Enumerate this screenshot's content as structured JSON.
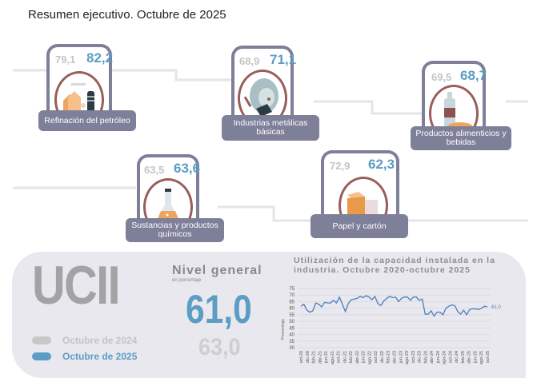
{
  "header": {
    "subtitle": "Resumen ejecutivo. Octubre de 2025"
  },
  "colors": {
    "frame": "#7e7f98",
    "blue": "#5b9dc4",
    "gray": "#c4c4c4",
    "ring": "#9a5e59",
    "panel": "#e8e8ee"
  },
  "industries": [
    {
      "name": "Refinación del petróleo",
      "v2024": "79,1",
      "v2025": "82,2",
      "icon": "refinery-icon"
    },
    {
      "name": "Industrias metálicas básicas",
      "v2024": "68,9",
      "v2025": "71,1",
      "icon": "welding-mask-icon"
    },
    {
      "name": "Productos alimenticios y bebidas",
      "v2024": "69,5",
      "v2025": "68,7",
      "icon": "bottle-bread-icon"
    },
    {
      "name": "Sustancias y productos químicos",
      "v2024": "63,5",
      "v2025": "63,6",
      "icon": "flask-icon"
    },
    {
      "name": "Papel y cartón",
      "v2024": "72,9",
      "v2025": "62,3",
      "icon": "box-icon"
    }
  ],
  "summary": {
    "acronym": "UCII",
    "legend_2024": "Octubre de 2024",
    "legend_2025": "Octubre de 2025",
    "level_title": "Nivel general",
    "level_subtitle": "en porcentaje",
    "level_2025": "61,0",
    "level_2024": "63,0"
  },
  "chart_data": {
    "type": "line",
    "title": "Utilización de la capacidad instalada en la industria. Octubre 2020-octubre 2025",
    "ylabel": "Porcentaje",
    "xlabel": "",
    "ylim": [
      30,
      75
    ],
    "yticks": [
      75,
      70,
      65,
      60,
      55,
      50,
      45,
      40,
      35,
      30
    ],
    "grid": true,
    "xtick_labels": [
      "oct-20",
      "dic-20",
      "feb-21",
      "abr-21",
      "jun-21",
      "ago-21",
      "oct-21",
      "dic-21",
      "feb-22",
      "abr-22",
      "jun-22",
      "ago-22",
      "oct-22",
      "dic-22",
      "feb-23",
      "abr-23",
      "jun-23",
      "ago-23",
      "oct-23",
      "dic-23",
      "feb-24",
      "abr-24",
      "jun-24",
      "ago-24",
      "oct-24",
      "dic-24",
      "feb-25",
      "abr-25",
      "jun-25",
      "ago-25",
      "oct-25"
    ],
    "end_label": "61,0",
    "series": [
      {
        "name": "UCII",
        "color": "#4a7fc1",
        "values": [
          61.5,
          63.0,
          58.5,
          57.0,
          58.0,
          64.0,
          63.0,
          61.0,
          64.5,
          64.0,
          64.0,
          66.0,
          64.0,
          68.5,
          63.0,
          57.5,
          63.5,
          66.5,
          67.0,
          67.5,
          69.0,
          68.0,
          69.5,
          68.5,
          66.5,
          69.0,
          63.5,
          62.0,
          65.5,
          67.5,
          69.0,
          68.0,
          68.5,
          65.0,
          67.5,
          68.5,
          68.5,
          66.0,
          68.5,
          68.5,
          66.0,
          67.0,
          55.5,
          55.5,
          58.0,
          54.0,
          57.0,
          57.0,
          55.0,
          60.0,
          61.5,
          62.5,
          62.0,
          57.5,
          55.5,
          58.5,
          55.0,
          59.0,
          59.5,
          59.5,
          59.0,
          60.0,
          61.5,
          61.0
        ]
      }
    ]
  }
}
